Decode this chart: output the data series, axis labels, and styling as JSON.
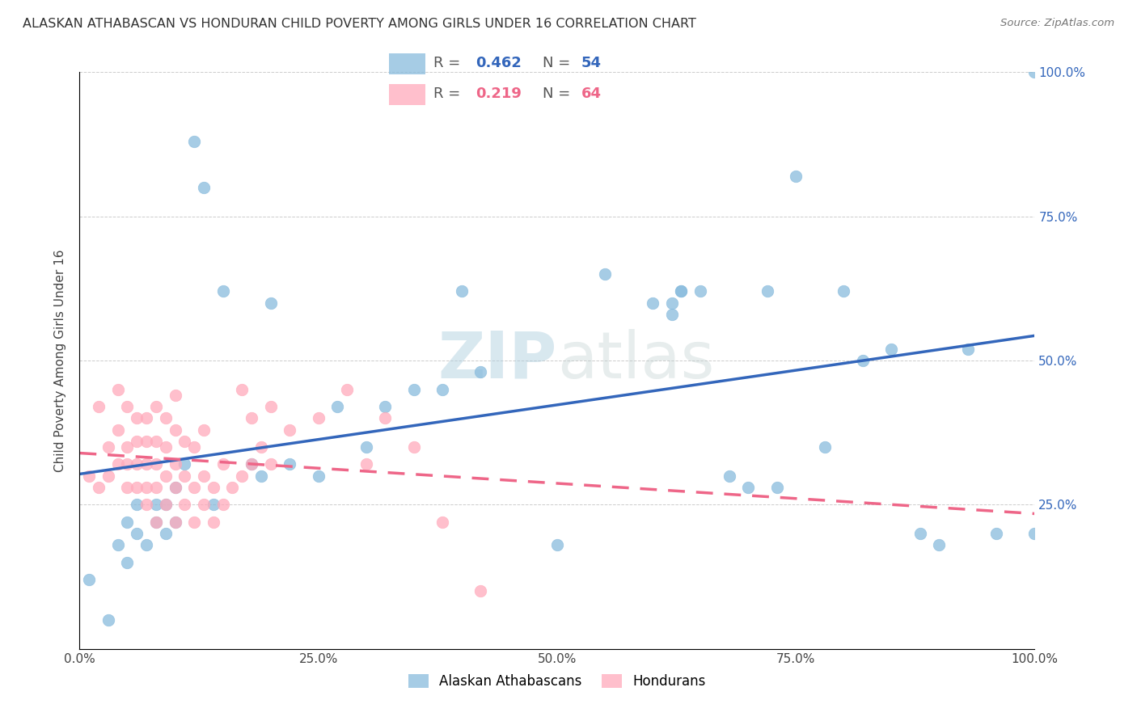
{
  "title": "ALASKAN ATHABASCAN VS HONDURAN CHILD POVERTY AMONG GIRLS UNDER 16 CORRELATION CHART",
  "source": "Source: ZipAtlas.com",
  "ylabel": "Child Poverty Among Girls Under 16",
  "xlim": [
    0.0,
    1.0
  ],
  "ylim": [
    0.0,
    1.0
  ],
  "xticks": [
    0.0,
    0.25,
    0.5,
    0.75,
    1.0
  ],
  "xtick_labels": [
    "0.0%",
    "25.0%",
    "50.0%",
    "75.0%",
    "100.0%"
  ],
  "yticks": [
    0.25,
    0.5,
    0.75,
    1.0
  ],
  "ytick_labels": [
    "25.0%",
    "50.0%",
    "75.0%",
    "100.0%"
  ],
  "blue_R": "0.462",
  "blue_N": "54",
  "pink_R": "0.219",
  "pink_N": "64",
  "blue_color": "#88BBDD",
  "pink_color": "#FFAABB",
  "blue_line_color": "#3366BB",
  "pink_line_color": "#EE6688",
  "watermark_zip": "ZIP",
  "watermark_atlas": "atlas",
  "blue_scatter_x": [
    0.01,
    0.03,
    0.04,
    0.05,
    0.05,
    0.06,
    0.06,
    0.07,
    0.08,
    0.08,
    0.09,
    0.09,
    0.1,
    0.1,
    0.11,
    0.12,
    0.13,
    0.14,
    0.18,
    0.19,
    0.22,
    0.25,
    0.27,
    0.3,
    0.32,
    0.35,
    0.38,
    0.4,
    0.42,
    0.5,
    0.55,
    0.6,
    0.62,
    0.63,
    0.65,
    0.68,
    0.7,
    0.72,
    0.73,
    0.75,
    0.78,
    0.8,
    0.82,
    0.85,
    0.88,
    0.9,
    0.93,
    0.96,
    1.0,
    1.0,
    0.62,
    0.63,
    0.15,
    0.2
  ],
  "blue_scatter_y": [
    0.12,
    0.05,
    0.18,
    0.22,
    0.15,
    0.25,
    0.2,
    0.18,
    0.25,
    0.22,
    0.2,
    0.25,
    0.22,
    0.28,
    0.32,
    0.88,
    0.8,
    0.25,
    0.32,
    0.3,
    0.32,
    0.3,
    0.42,
    0.35,
    0.42,
    0.45,
    0.45,
    0.62,
    0.48,
    0.18,
    0.65,
    0.6,
    0.58,
    0.62,
    0.62,
    0.3,
    0.28,
    0.62,
    0.28,
    0.82,
    0.35,
    0.62,
    0.5,
    0.52,
    0.2,
    0.18,
    0.52,
    0.2,
    1.0,
    0.2,
    0.6,
    0.62,
    0.62,
    0.6
  ],
  "pink_scatter_x": [
    0.01,
    0.02,
    0.02,
    0.03,
    0.03,
    0.04,
    0.04,
    0.04,
    0.05,
    0.05,
    0.05,
    0.05,
    0.06,
    0.06,
    0.06,
    0.06,
    0.07,
    0.07,
    0.07,
    0.07,
    0.07,
    0.08,
    0.08,
    0.08,
    0.08,
    0.08,
    0.09,
    0.09,
    0.09,
    0.09,
    0.1,
    0.1,
    0.1,
    0.1,
    0.1,
    0.11,
    0.11,
    0.11,
    0.12,
    0.12,
    0.12,
    0.13,
    0.13,
    0.13,
    0.14,
    0.14,
    0.15,
    0.15,
    0.16,
    0.17,
    0.17,
    0.18,
    0.18,
    0.19,
    0.2,
    0.2,
    0.22,
    0.25,
    0.28,
    0.3,
    0.32,
    0.35,
    0.38,
    0.42
  ],
  "pink_scatter_y": [
    0.3,
    0.28,
    0.42,
    0.3,
    0.35,
    0.32,
    0.38,
    0.45,
    0.28,
    0.32,
    0.35,
    0.42,
    0.28,
    0.32,
    0.36,
    0.4,
    0.25,
    0.28,
    0.32,
    0.36,
    0.4,
    0.22,
    0.28,
    0.32,
    0.36,
    0.42,
    0.25,
    0.3,
    0.35,
    0.4,
    0.22,
    0.28,
    0.32,
    0.38,
    0.44,
    0.25,
    0.3,
    0.36,
    0.22,
    0.28,
    0.35,
    0.25,
    0.3,
    0.38,
    0.22,
    0.28,
    0.25,
    0.32,
    0.28,
    0.3,
    0.45,
    0.32,
    0.4,
    0.35,
    0.32,
    0.42,
    0.38,
    0.4,
    0.45,
    0.32,
    0.4,
    0.35,
    0.22,
    0.1
  ]
}
